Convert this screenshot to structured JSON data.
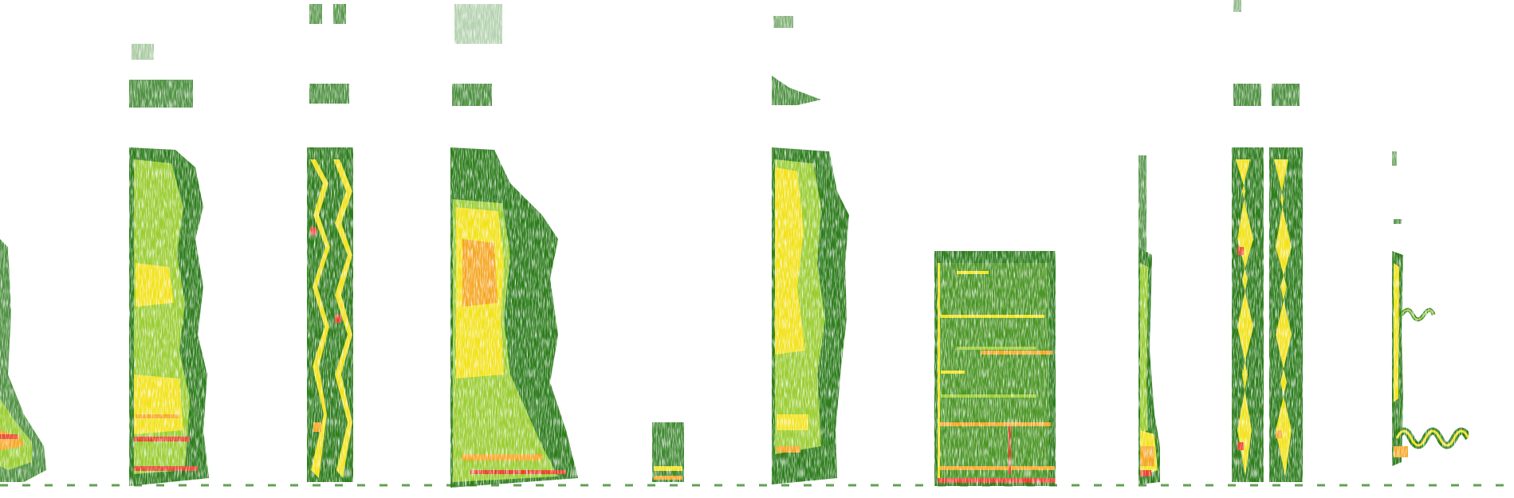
{
  "image": {
    "kind": "spectrogram",
    "background": "#ffffff",
    "palette": {
      "low": "#2e7d1f",
      "mid": "#9acd32",
      "high": "#f2e21a",
      "peak": "#f5a623",
      "max": "#e8412c"
    }
  }
}
